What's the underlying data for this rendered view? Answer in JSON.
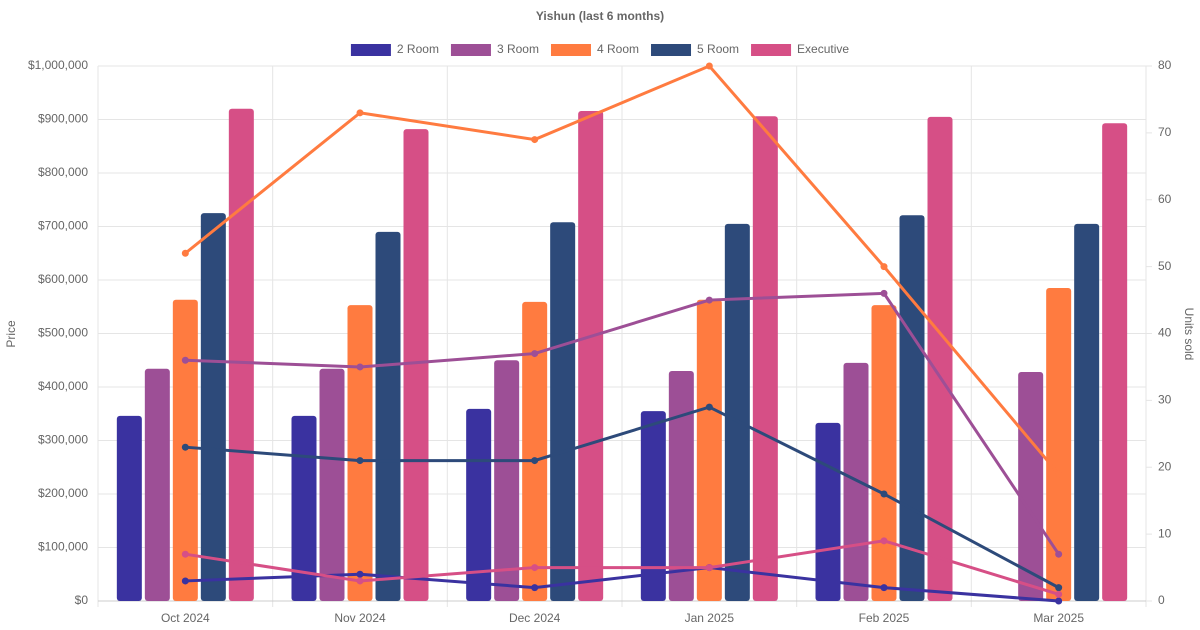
{
  "chart_data": {
    "type": "bar_line",
    "title": "Yishun (last 6 months)",
    "y_label": "Price",
    "y2_label": "Units sold",
    "categories": [
      "Oct 2024",
      "Nov 2024",
      "Dec 2024",
      "Jan 2025",
      "Feb 2025",
      "Mar 2025"
    ],
    "series": [
      {
        "name": "2 Room",
        "color": "#3a32a0",
        "values": [
          346000,
          346000,
          359000,
          355000,
          333000,
          null
        ],
        "units": [
          3,
          4,
          2,
          5,
          2,
          0
        ]
      },
      {
        "name": "3 Room",
        "color": "#9d4f96",
        "values": [
          434000,
          434000,
          450000,
          430000,
          445000,
          428000
        ],
        "units": [
          36,
          35,
          37,
          45,
          46,
          7
        ]
      },
      {
        "name": "4 Room",
        "color": "#ff7b40",
        "values": [
          563000,
          553000,
          559000,
          563000,
          553000,
          585000
        ],
        "units": [
          52,
          73,
          69,
          80,
          50,
          19
        ]
      },
      {
        "name": "5 Room",
        "color": "#2d4a7a",
        "values": [
          725000,
          690000,
          708000,
          705000,
          721000,
          705000
        ],
        "units": [
          23,
          21,
          21,
          29,
          16,
          2
        ]
      },
      {
        "name": "Executive",
        "color": "#d64f86",
        "values": [
          920000,
          882000,
          916000,
          906000,
          905000,
          893000
        ],
        "units": [
          7,
          3,
          5,
          5,
          9,
          1
        ]
      }
    ],
    "ylim": [
      0,
      1000000
    ],
    "yticks": [
      {
        "value": 0,
        "label": "$0"
      },
      {
        "value": 100000,
        "label": "$100,000"
      },
      {
        "value": 200000,
        "label": "$200,000"
      },
      {
        "value": 300000,
        "label": "$300,000"
      },
      {
        "value": 400000,
        "label": "$400,000"
      },
      {
        "value": 500000,
        "label": "$500,000"
      },
      {
        "value": 600000,
        "label": "$600,000"
      },
      {
        "value": 700000,
        "label": "$700,000"
      },
      {
        "value": 800000,
        "label": "$800,000"
      },
      {
        "value": 900000,
        "label": "$900,000"
      },
      {
        "value": 1000000,
        "label": "$1,000,000"
      }
    ],
    "y2lim": [
      0,
      80
    ],
    "y2ticks": [
      0,
      10,
      20,
      30,
      40,
      50,
      60,
      70,
      80
    ],
    "grid": true,
    "legend": "top"
  }
}
